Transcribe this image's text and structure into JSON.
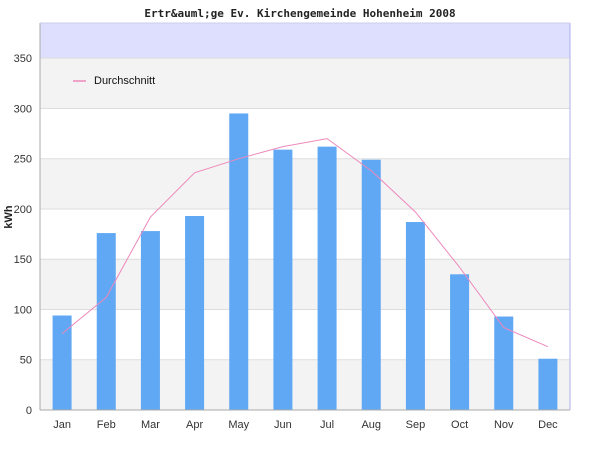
{
  "chart_data": {
    "type": "bar",
    "title": "Ertr&auml;ge Ev. Kirchengemeinde Hohenheim 2008",
    "xlabel": "",
    "ylabel": "kWh",
    "ylim": [
      0,
      385
    ],
    "yticks": [
      0,
      50,
      100,
      150,
      200,
      250,
      300,
      350
    ],
    "categories": [
      "Jan",
      "Feb",
      "Mar",
      "Apr",
      "May",
      "Jun",
      "Jul",
      "Aug",
      "Sep",
      "Oct",
      "Nov",
      "Dec"
    ],
    "values": [
      94,
      176,
      178,
      193,
      295,
      259,
      262,
      249,
      187,
      135,
      93,
      51
    ],
    "bar_color": "#60a8f4",
    "series": [
      {
        "name": "Durchschnitt",
        "type": "line",
        "color": "#ee88bb",
        "values": [
          76,
          112,
          192,
          236,
          250,
          262,
          270,
          238,
          197,
          142,
          82,
          63
        ]
      }
    ],
    "legend_position": "top-left",
    "grid": true,
    "band_colors": [
      "#f3f3f3",
      "#ffffff"
    ],
    "top_band_color": "#dedeff",
    "legend": [
      "Durchschnitt"
    ]
  }
}
